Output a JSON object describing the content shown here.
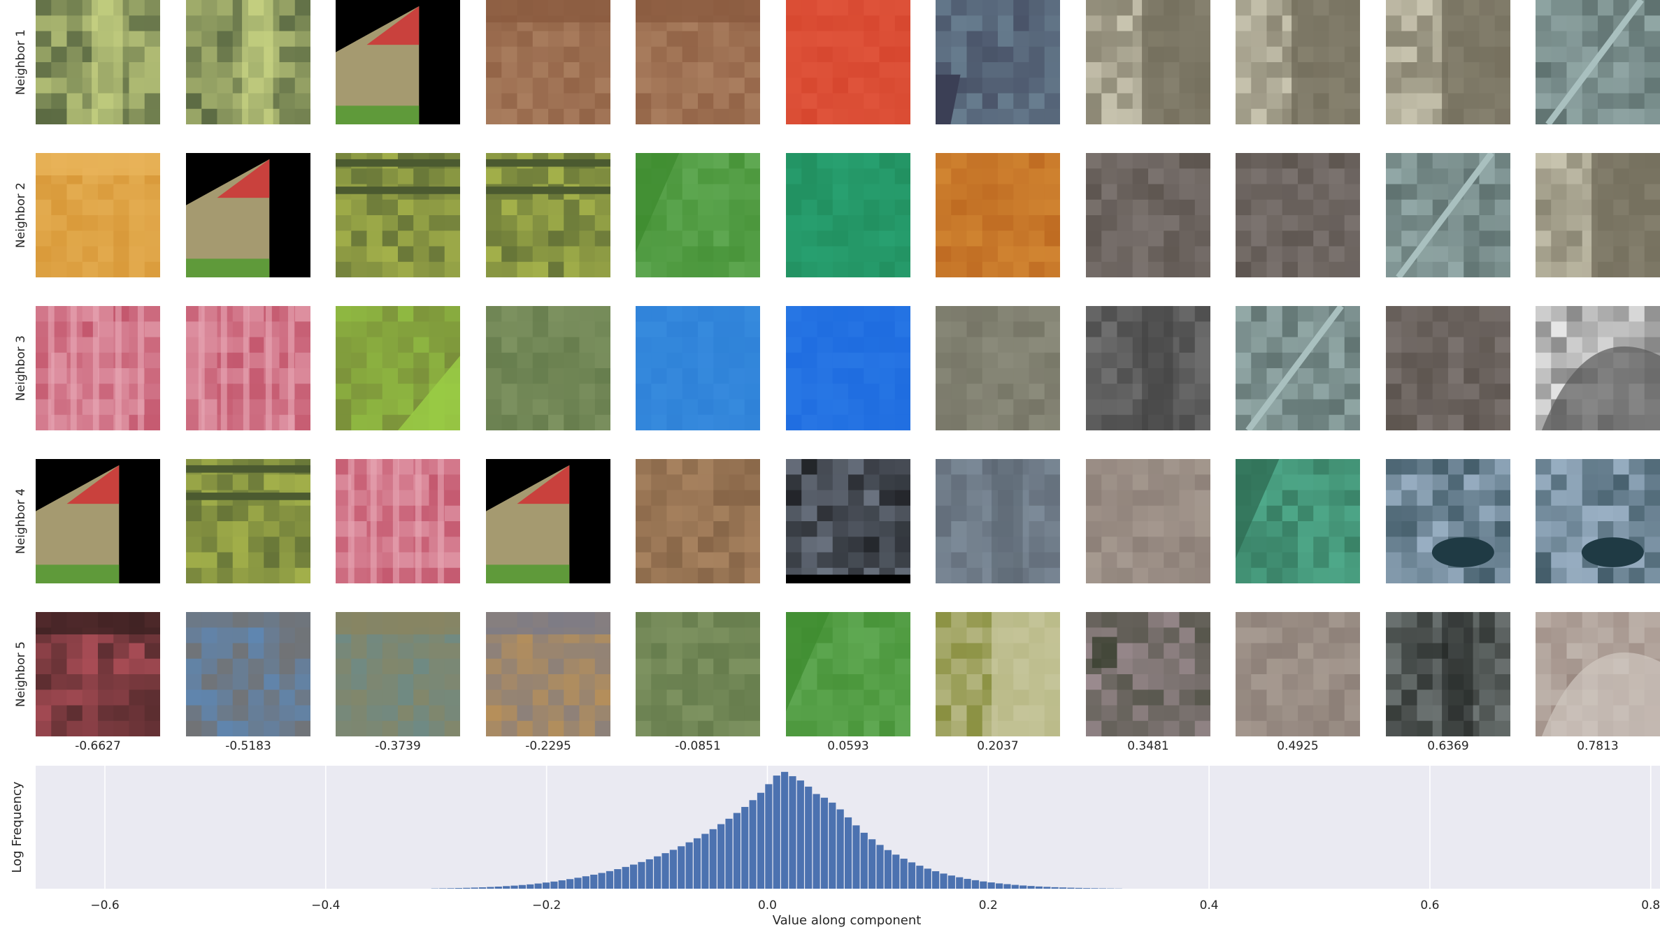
{
  "chart_data": [
    {
      "type": "image_grid",
      "row_labels": [
        "Neighbor 1",
        "Neighbor 2",
        "Neighbor 3",
        "Neighbor 4",
        "Neighbor 5"
      ],
      "column_values": [
        "-0.6627",
        "-0.5183",
        "-0.3739",
        "-0.2295",
        "-0.0851",
        "0.0593",
        "0.2037",
        "0.3481",
        "0.4925",
        "0.6369",
        "0.7813"
      ],
      "tiles": [
        [
          {
            "base": "#5b6a43",
            "accent": "#d6e08a",
            "pattern": "streak-v"
          },
          {
            "base": "#5b6a43",
            "accent": "#d6e08a",
            "pattern": "streak-v"
          },
          {
            "base": "#a59a70",
            "accent": "#c9413d",
            "pattern": "roof"
          },
          {
            "base": "#a97d5e",
            "accent": "#8a5a3e",
            "pattern": "band-top"
          },
          {
            "base": "#a97d5e",
            "accent": "#8a5a3e",
            "pattern": "band-top"
          },
          {
            "base": "#d7472f",
            "accent": "#e35a40",
            "pattern": "noise"
          },
          {
            "base": "#687e90",
            "accent": "#3b3f55",
            "pattern": "corner-bl"
          },
          {
            "base": "#c9c5b0",
            "accent": "#6f6a58",
            "pattern": "split-v"
          },
          {
            "base": "#c9c5b0",
            "accent": "#6f6a58",
            "pattern": "split-v"
          },
          {
            "base": "#c9c5b0",
            "accent": "#6f6a58",
            "pattern": "split-v"
          },
          {
            "base": "#5f7270",
            "accent": "#a9c0bf",
            "pattern": "diag"
          }
        ],
        [
          {
            "base": "#d99a3a",
            "accent": "#e8b45a",
            "pattern": "band-top"
          },
          {
            "base": "#a59a70",
            "accent": "#c9413d",
            "pattern": "roof"
          },
          {
            "base": "#a3b04a",
            "accent": "#4b5a30",
            "pattern": "stripes-h"
          },
          {
            "base": "#a3b04a",
            "accent": "#4b5a30",
            "pattern": "stripes-h"
          },
          {
            "base": "#5fa852",
            "accent": "#3f8c2f",
            "pattern": "diag-split"
          },
          {
            "base": "#28a070",
            "accent": "#1f8a5a",
            "pattern": "noise"
          },
          {
            "base": "#d08431",
            "accent": "#b8611c",
            "pattern": "noise"
          },
          {
            "base": "#7b736f",
            "accent": "#504842",
            "pattern": "noise"
          },
          {
            "base": "#7b736f",
            "accent": "#504842",
            "pattern": "noise"
          },
          {
            "base": "#5f7270",
            "accent": "#a9c0bf",
            "pattern": "diag"
          },
          {
            "base": "#c9c5b0",
            "accent": "#6f6a58",
            "pattern": "split-v"
          }
        ],
        [
          {
            "base": "#c4586e",
            "accent": "#e8a8b6",
            "pattern": "stripes-v"
          },
          {
            "base": "#c4586e",
            "accent": "#e8a8b6",
            "pattern": "stripes-v"
          },
          {
            "base": "#7a8f3a",
            "accent": "#9acd45",
            "pattern": "corner-br"
          },
          {
            "base": "#7d9260",
            "accent": "#5d7445",
            "pattern": "noise"
          },
          {
            "base": "#2f82d8",
            "accent": "#3a8ee0",
            "pattern": "noise"
          },
          {
            "base": "#1f6de0",
            "accent": "#2b7ae6",
            "pattern": "noise"
          },
          {
            "base": "#8b8b7b",
            "accent": "#6e6d5e",
            "pattern": "noise"
          },
          {
            "base": "#6f6f6f",
            "accent": "#3f3f3f",
            "pattern": "streak-v"
          },
          {
            "base": "#5f7270",
            "accent": "#a9c0bf",
            "pattern": "diag"
          },
          {
            "base": "#7b736f",
            "accent": "#504842",
            "pattern": "noise"
          },
          {
            "base": "#f0f0f0",
            "accent": "#5a5a5a",
            "pattern": "arc"
          }
        ],
        [
          {
            "base": "#a59a70",
            "accent": "#c9413d",
            "pattern": "roof"
          },
          {
            "base": "#a3b04a",
            "accent": "#4b5a30",
            "pattern": "stripes-h"
          },
          {
            "base": "#c4586e",
            "accent": "#e8a8b6",
            "pattern": "stripes-v"
          },
          {
            "base": "#a59a70",
            "accent": "#c9413d",
            "pattern": "roof"
          },
          {
            "base": "#a7825f",
            "accent": "#7a5a3e",
            "pattern": "noise"
          },
          {
            "base": "#717a88",
            "accent": "#000000",
            "pattern": "bar-bottom"
          },
          {
            "base": "#7c8a98",
            "accent": "#5a6470",
            "pattern": "streak-v"
          },
          {
            "base": "#8d8078",
            "accent": "#b0a49a",
            "pattern": "noise"
          },
          {
            "base": "#4fa98a",
            "accent": "#2f6e55",
            "pattern": "diag-split"
          },
          {
            "base": "#9ab0c4",
            "accent": "#1f3a44",
            "pattern": "blob"
          },
          {
            "base": "#9ab0c4",
            "accent": "#1f3a44",
            "pattern": "blob"
          }
        ],
        [
          {
            "base": "#a84c55",
            "accent": "#3a2020",
            "pattern": "band-top"
          },
          {
            "base": "#5f86b0",
            "accent": "#7a6a5a",
            "pattern": "noise"
          },
          {
            "base": "#6f8a84",
            "accent": "#8a8560",
            "pattern": "band-top"
          },
          {
            "base": "#b89058",
            "accent": "#7a7a88",
            "pattern": "band-top"
          },
          {
            "base": "#7d9260",
            "accent": "#5d7445",
            "pattern": "noise"
          },
          {
            "base": "#5fa852",
            "accent": "#3f8c2f",
            "pattern": "diag-split"
          },
          {
            "base": "#8a9040",
            "accent": "#c9c8a0",
            "pattern": "split-v"
          },
          {
            "base": "#9a8a8e",
            "accent": "#3a4030",
            "pattern": "corner-tl"
          },
          {
            "base": "#8d8078",
            "accent": "#b0a49a",
            "pattern": "noise"
          },
          {
            "base": "#6f7675",
            "accent": "#1f2320",
            "pattern": "streak-v"
          },
          {
            "base": "#9a8880",
            "accent": "#d0c8c0",
            "pattern": "arc"
          }
        ]
      ]
    },
    {
      "type": "bar",
      "xlabel": "Value along component",
      "ylabel": "Log Frequency",
      "xlim": [
        -0.6627,
        0.8084
      ],
      "ylim": [
        0,
        1.0
      ],
      "x_ticks": [
        -0.6,
        -0.4,
        -0.2,
        0.0,
        0.2,
        0.4,
        0.6,
        0.8
      ],
      "x_tick_labels": [
        "−0.6",
        "−0.4",
        "−0.2",
        "0.0",
        "0.2",
        "0.4",
        "0.6",
        "0.8"
      ],
      "grid": true,
      "background": "#eaeaf2",
      "bar_color": "#4c72b0",
      "bin_width": 0.0072,
      "bins": [
        [
          -0.3048,
          0.002
        ],
        [
          -0.2976,
          0.003
        ],
        [
          -0.2904,
          0.004
        ],
        [
          -0.2832,
          0.0055
        ],
        [
          -0.276,
          0.007
        ],
        [
          -0.2688,
          0.009
        ],
        [
          -0.2616,
          0.011
        ],
        [
          -0.2544,
          0.014
        ],
        [
          -0.2472,
          0.017
        ],
        [
          -0.24,
          0.021
        ],
        [
          -0.2328,
          0.025
        ],
        [
          -0.2256,
          0.03
        ],
        [
          -0.2184,
          0.035
        ],
        [
          -0.2112,
          0.042
        ],
        [
          -0.204,
          0.05
        ],
        [
          -0.1968,
          0.058
        ],
        [
          -0.1896,
          0.068
        ],
        [
          -0.1824,
          0.078
        ],
        [
          -0.1752,
          0.089
        ],
        [
          -0.168,
          0.101
        ],
        [
          -0.1608,
          0.114
        ],
        [
          -0.1536,
          0.128
        ],
        [
          -0.1464,
          0.143
        ],
        [
          -0.1392,
          0.159
        ],
        [
          -0.132,
          0.177
        ],
        [
          -0.1248,
          0.196
        ],
        [
          -0.1176,
          0.217
        ],
        [
          -0.1104,
          0.239
        ],
        [
          -0.1032,
          0.263
        ],
        [
          -0.096,
          0.289
        ],
        [
          -0.0888,
          0.316
        ],
        [
          -0.0816,
          0.345
        ],
        [
          -0.0744,
          0.377
        ],
        [
          -0.0672,
          0.41
        ],
        [
          -0.06,
          0.446
        ],
        [
          -0.0528,
          0.484
        ],
        [
          -0.0456,
          0.525
        ],
        [
          -0.0384,
          0.569
        ],
        [
          -0.0312,
          0.616
        ],
        [
          -0.024,
          0.665
        ],
        [
          -0.0168,
          0.72
        ],
        [
          -0.0096,
          0.78
        ],
        [
          -0.0024,
          0.85
        ],
        [
          0.0048,
          0.92
        ],
        [
          0.012,
          0.95
        ],
        [
          0.0192,
          0.915
        ],
        [
          0.0264,
          0.88
        ],
        [
          0.0336,
          0.83
        ],
        [
          0.0408,
          0.77
        ],
        [
          0.048,
          0.74
        ],
        [
          0.0552,
          0.7
        ],
        [
          0.0624,
          0.645
        ],
        [
          0.0696,
          0.58
        ],
        [
          0.0768,
          0.515
        ],
        [
          0.084,
          0.455
        ],
        [
          0.0912,
          0.402
        ],
        [
          0.0984,
          0.356
        ],
        [
          0.1056,
          0.314
        ],
        [
          0.1128,
          0.277
        ],
        [
          0.12,
          0.244
        ],
        [
          0.1272,
          0.214
        ],
        [
          0.1344,
          0.187
        ],
        [
          0.1416,
          0.163
        ],
        [
          0.1488,
          0.142
        ],
        [
          0.156,
          0.123
        ],
        [
          0.1632,
          0.107
        ],
        [
          0.1704,
          0.093
        ],
        [
          0.1776,
          0.08
        ],
        [
          0.1848,
          0.069
        ],
        [
          0.192,
          0.059
        ],
        [
          0.1992,
          0.051
        ],
        [
          0.2064,
          0.043
        ],
        [
          0.2136,
          0.037
        ],
        [
          0.2208,
          0.031
        ],
        [
          0.228,
          0.026
        ],
        [
          0.2352,
          0.022
        ],
        [
          0.2424,
          0.018
        ],
        [
          0.2496,
          0.015
        ],
        [
          0.2568,
          0.012
        ],
        [
          0.264,
          0.01
        ],
        [
          0.2712,
          0.008
        ],
        [
          0.2784,
          0.0065
        ],
        [
          0.2856,
          0.005
        ],
        [
          0.2928,
          0.004
        ],
        [
          0.3,
          0.003
        ],
        [
          0.3072,
          0.0022
        ],
        [
          0.3144,
          0.0015
        ]
      ]
    }
  ]
}
